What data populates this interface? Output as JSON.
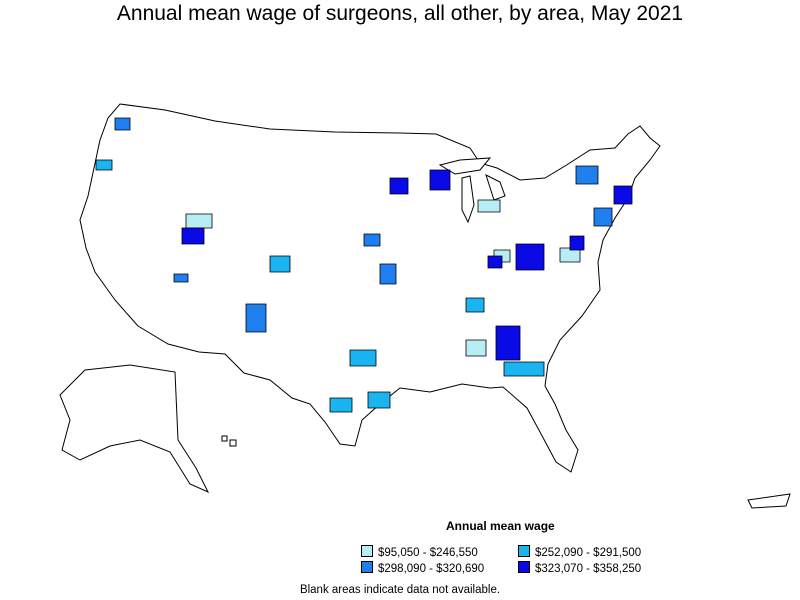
{
  "title": "Annual mean wage of surgeons, all other, by area, May 2021",
  "legend": {
    "title": "Annual mean wage",
    "items": [
      {
        "label": "$95,050 - $246,550",
        "color": "#b7eef5"
      },
      {
        "label": "$252,090 - $291,500",
        "color": "#1ab4f0"
      },
      {
        "label": "$298,090 - $320,690",
        "color": "#1f7fef"
      },
      {
        "label": "$323,070 - $358,250",
        "color": "#0a0ae6"
      }
    ]
  },
  "footnote": "Blank areas indicate data not available."
}
